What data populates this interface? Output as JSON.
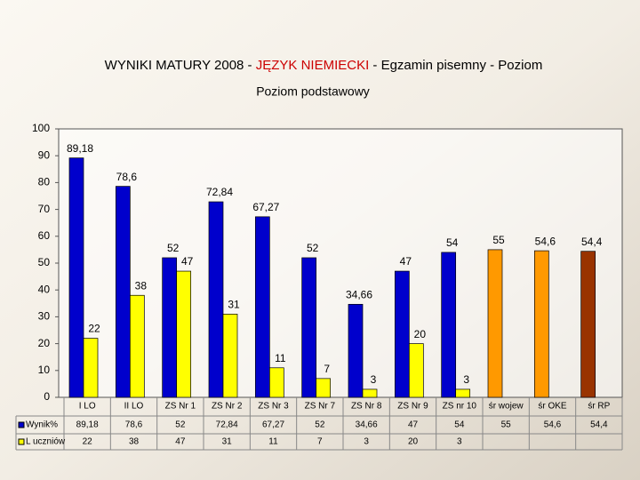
{
  "chart_data": {
    "type": "bar",
    "title_parts": [
      "WYNIKI MATURY 2008 - ",
      "JĘZYK NIEMIECKI",
      " - Egzamin pisemny - Poziom"
    ],
    "subtitle": "Poziom podstawowy",
    "categories": [
      "I LO",
      "II LO",
      "ZS Nr 1",
      "ZS Nr 2",
      "ZS Nr 3",
      "ZS Nr 7",
      "ZS Nr 8",
      "ZS Nr 9",
      "ZS nr 10",
      "śr wojew",
      "śr OKE",
      "śr RP"
    ],
    "series": [
      {
        "name": "Wynik%",
        "color": "#0000cc",
        "colors": [
          "#0000cc",
          "#0000cc",
          "#0000cc",
          "#0000cc",
          "#0000cc",
          "#0000cc",
          "#0000cc",
          "#0000cc",
          "#0000cc",
          "#ff9900",
          "#ff9900",
          "#993300"
        ],
        "values": [
          89.18,
          78.6,
          52,
          72.84,
          67.27,
          52,
          34.66,
          47,
          54,
          55,
          54.6,
          54.4
        ],
        "value_labels": [
          "89,18",
          "78,6",
          "52",
          "72,84",
          "67,27",
          "52",
          "34,66",
          "47",
          "54",
          "55",
          "54,6",
          "54,4"
        ]
      },
      {
        "name": "L uczniów",
        "color": "#ffff00",
        "values": [
          22,
          38,
          47,
          31,
          11,
          7,
          3,
          20,
          3,
          null,
          null,
          null
        ]
      }
    ],
    "ylim": [
      0,
      100
    ],
    "yticks": [
      0,
      10,
      20,
      30,
      40,
      50,
      60,
      70,
      80,
      90,
      100
    ]
  }
}
